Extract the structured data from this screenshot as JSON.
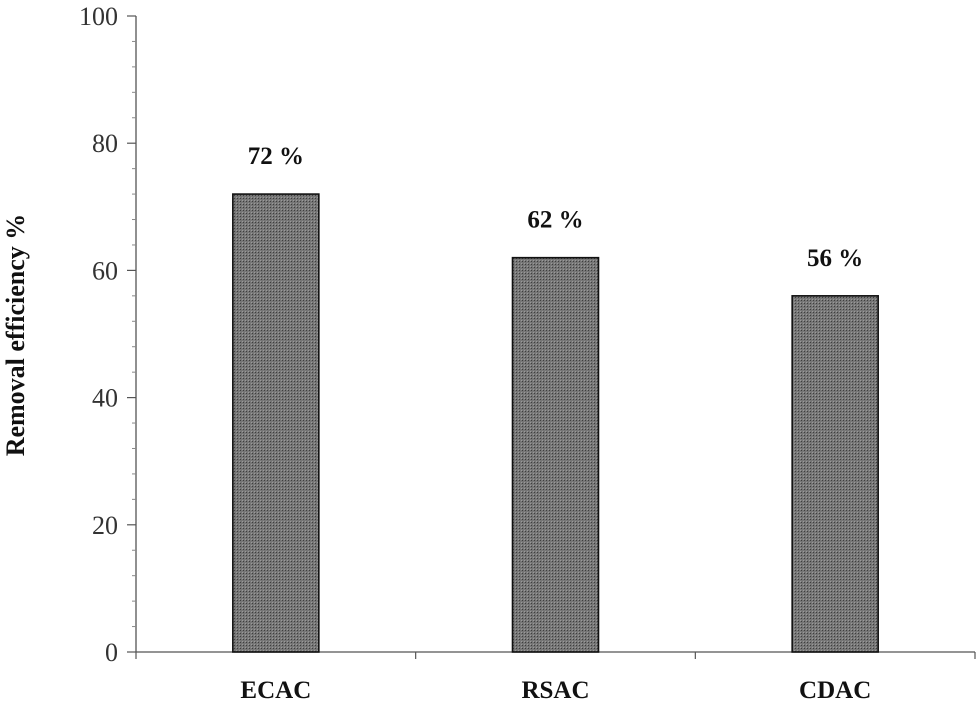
{
  "chart_data": {
    "type": "bar",
    "categories": [
      "ECAC",
      "RSAC",
      "CDAC"
    ],
    "values": [
      72,
      62,
      56
    ],
    "data_labels": [
      "72 %",
      "62 %",
      "56 %"
    ],
    "title": "",
    "xlabel": "",
    "ylabel": "Removal efficiency %",
    "ylim": [
      0,
      100
    ],
    "yticks": [
      0,
      20,
      40,
      60,
      80,
      100
    ],
    "yminor_step": 4,
    "grid": false,
    "legend": "none",
    "bar_fill": "#6e6e6e",
    "bar_edge": "#111111"
  }
}
